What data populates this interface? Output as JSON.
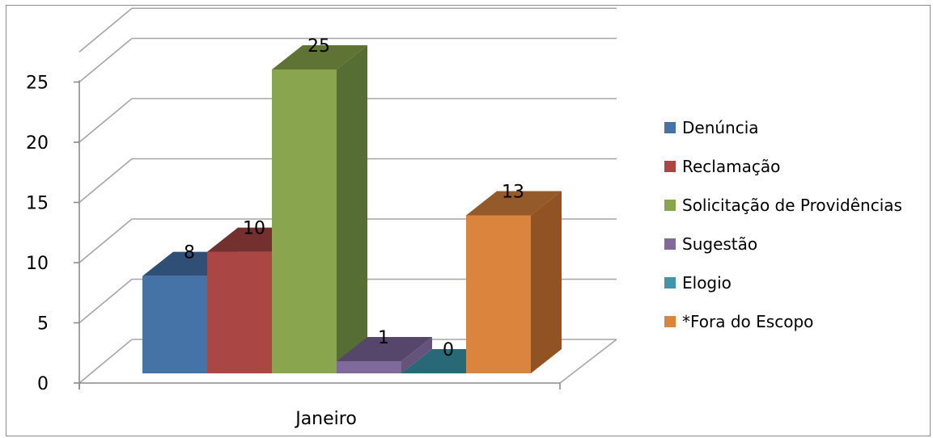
{
  "chart_data": {
    "type": "bar",
    "categories": [
      "Janeiro"
    ],
    "series": [
      {
        "name": "Denúncia",
        "values": [
          8
        ],
        "color": "#4572A7",
        "dark": "#2F4F77",
        "side": "#365A86"
      },
      {
        "name": "Reclamação",
        "values": [
          10
        ],
        "color": "#AA4643",
        "dark": "#73302E",
        "side": "#873836"
      },
      {
        "name": "Solicitação de Providências",
        "values": [
          25
        ],
        "color": "#89A54E",
        "dark": "#5F7334",
        "side": "#566E33"
      },
      {
        "name": "Sugestão",
        "values": [
          1
        ],
        "color": "#80699B",
        "dark": "#57466B",
        "side": "#66537C"
      },
      {
        "name": "Elogio",
        "values": [
          0
        ],
        "color": "#3D96AE",
        "dark": "#296877",
        "side": "#307888"
      },
      {
        "name": "*Fora do Escopo",
        "values": [
          13
        ],
        "color": "#DB843D",
        "dark": "#955A29",
        "side": "#915224"
      }
    ],
    "yticks": [
      "0",
      "5",
      "10",
      "15",
      "20",
      "25"
    ],
    "ylim": [
      0,
      27.5
    ],
    "title": "",
    "xlabel": "",
    "ylabel": "",
    "grid": true,
    "legend": "right"
  }
}
